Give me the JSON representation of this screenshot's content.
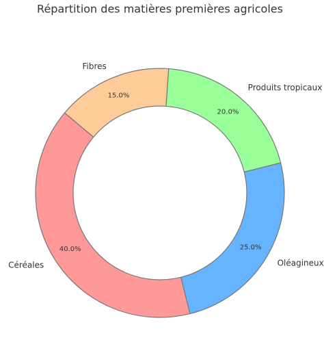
{
  "chart_data": {
    "type": "donut",
    "title": "Répartition des matières premières agricoles",
    "categories": [
      "Céréales",
      "Oléagineux",
      "Produits tropicaux",
      "Fibres"
    ],
    "values": [
      40,
      25,
      20,
      15
    ],
    "value_labels": [
      "40.0%",
      "25.0%",
      "20.0%",
      "15.0%"
    ],
    "colors": [
      "#ff9999",
      "#66b3ff",
      "#99ff99",
      "#ffcc99"
    ]
  }
}
